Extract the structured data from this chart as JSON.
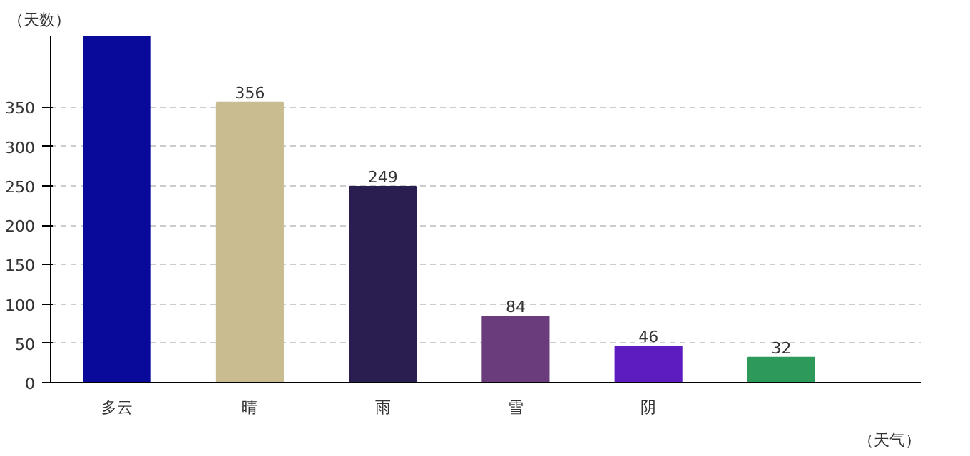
{
  "chart_data": {
    "type": "bar",
    "ylabel": "（天数）",
    "xlabel": "（天气）",
    "categories": [
      "多云",
      "晴",
      "雨",
      "雪",
      "阴",
      null
    ],
    "values": [
      440,
      356,
      249,
      84,
      46,
      32
    ],
    "value_labels": [
      null,
      "356",
      "249",
      "84",
      "46",
      "32"
    ],
    "colors": [
      "#0a0a9a",
      "#c8bc90",
      "#2a1e50",
      "#6a3c7c",
      "#5c1cc0",
      "#2e9a5a"
    ],
    "ylim": [
      0,
      440
    ],
    "yticks": [
      0,
      50,
      100,
      150,
      200,
      250,
      300,
      350
    ],
    "grid": "y"
  }
}
